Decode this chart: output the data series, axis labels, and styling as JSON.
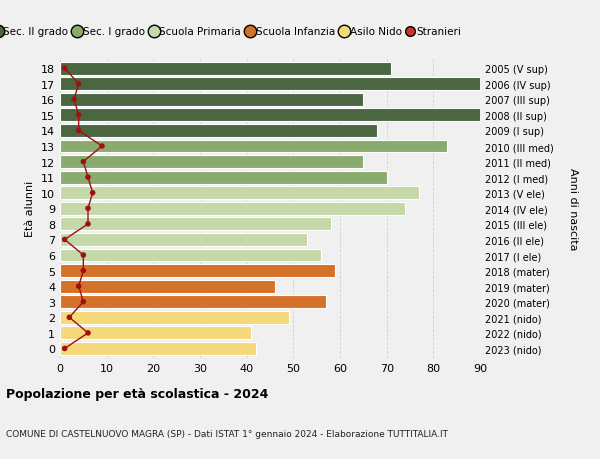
{
  "ages": [
    18,
    17,
    16,
    15,
    14,
    13,
    12,
    11,
    10,
    9,
    8,
    7,
    6,
    5,
    4,
    3,
    2,
    1,
    0
  ],
  "years": [
    "2005 (V sup)",
    "2006 (IV sup)",
    "2007 (III sup)",
    "2008 (II sup)",
    "2009 (I sup)",
    "2010 (III med)",
    "2011 (II med)",
    "2012 (I med)",
    "2013 (V ele)",
    "2014 (IV ele)",
    "2015 (III ele)",
    "2016 (II ele)",
    "2017 (I ele)",
    "2018 (mater)",
    "2019 (mater)",
    "2020 (mater)",
    "2021 (nido)",
    "2022 (nido)",
    "2023 (nido)"
  ],
  "bar_values": [
    71,
    93,
    65,
    93,
    68,
    83,
    65,
    70,
    77,
    74,
    58,
    53,
    56,
    59,
    46,
    57,
    49,
    41,
    42
  ],
  "bar_colors": [
    "#4a6741",
    "#4a6741",
    "#4a6741",
    "#4a6741",
    "#4a6741",
    "#8aab6e",
    "#8aab6e",
    "#8aab6e",
    "#c5d9a8",
    "#c5d9a8",
    "#c5d9a8",
    "#c5d9a8",
    "#c5d9a8",
    "#d4722a",
    "#d4722a",
    "#d4722a",
    "#f5d87a",
    "#f5d87a",
    "#f5d87a"
  ],
  "foreigners": [
    1,
    4,
    3,
    4,
    4,
    9,
    5,
    6,
    7,
    6,
    6,
    1,
    5,
    5,
    4,
    5,
    2,
    6,
    1
  ],
  "title": "Popolazione per età scolastica - 2024",
  "subtitle": "COMUNE DI CASTELNUOVO MAGRA (SP) - Dati ISTAT 1° gennaio 2024 - Elaborazione TUTTITALIA.IT",
  "ylabel_left": "Età alunni",
  "ylabel_right": "Anni di nascita",
  "xlim": [
    0,
    90
  ],
  "xticks": [
    0,
    10,
    20,
    30,
    40,
    50,
    60,
    70,
    80,
    90
  ],
  "legend_labels": [
    "Sec. II grado",
    "Sec. I grado",
    "Scuola Primaria",
    "Scuola Infanzia",
    "Asilo Nido",
    "Stranieri"
  ],
  "legend_colors": [
    "#4a6741",
    "#8aab6e",
    "#c5d9a8",
    "#d4722a",
    "#f5d87a",
    "#c0392b"
  ],
  "background_color": "#f0f0f0",
  "grid_color": "#d0d0d0",
  "foreigner_dot_color": "#a01010",
  "foreigner_line_color": "#a01010",
  "bar_height": 0.82
}
